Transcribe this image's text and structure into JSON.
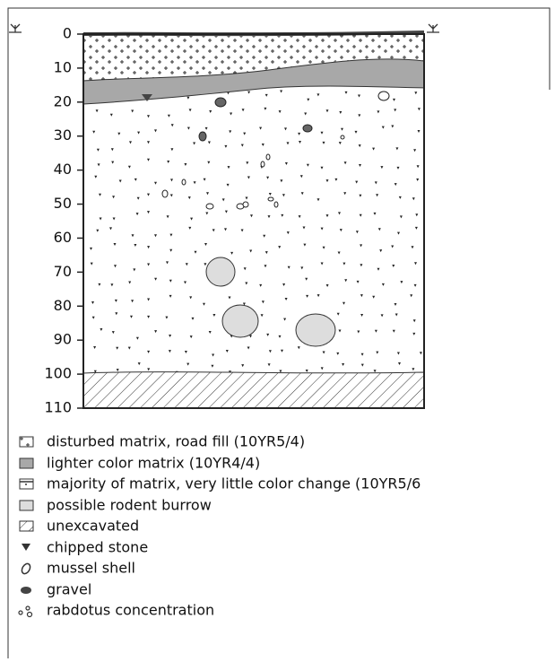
{
  "depth_axis": {
    "ticks": [
      0,
      10,
      20,
      30,
      40,
      50,
      60,
      70,
      80,
      90,
      100,
      110
    ]
  },
  "legend": [
    {
      "label": "disturbed matrix, road fill (10YR5/4)"
    },
    {
      "label": "lighter color matrix (10YR4/4)"
    },
    {
      "label": "majority of matrix, very little color change (10YR5/6"
    },
    {
      "label": "possible rodent burrow"
    },
    {
      "label": "unexcavated"
    },
    {
      "label": "chipped stone"
    },
    {
      "label": "mussel shell"
    },
    {
      "label": "gravel"
    },
    {
      "label": "rabdotus concentration"
    }
  ]
}
